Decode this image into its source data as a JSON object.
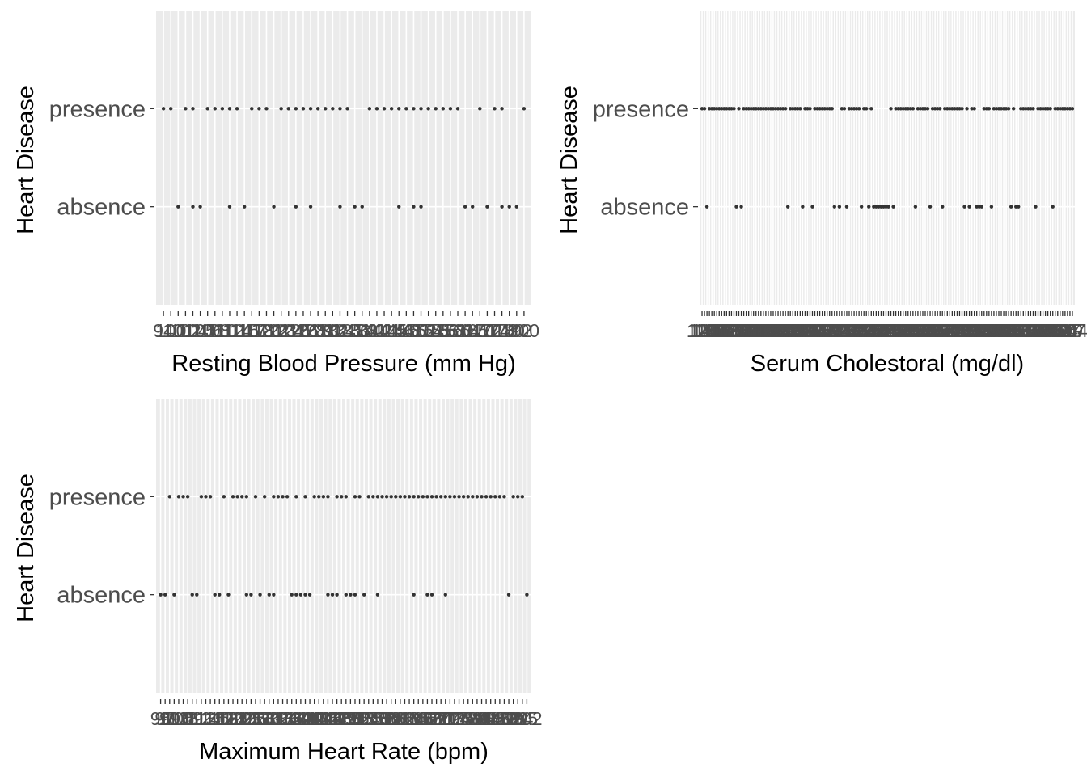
{
  "colors": {
    "panel_bg": "#ebebeb",
    "grid": "#ffffff",
    "point": "#333333",
    "tick": "#333333",
    "text": "#4d4d4d",
    "title": "#000000"
  },
  "chart_data": [
    {
      "type": "scatter",
      "x_scale": "discrete",
      "xlabel": "Resting Blood Pressure (mm Hg)",
      "ylabel": "Heart Disease",
      "categories": [
        "absence",
        "presence"
      ],
      "x_levels": [
        94,
        100,
        101,
        102,
        104,
        105,
        106,
        108,
        110,
        112,
        114,
        115,
        117,
        118,
        120,
        122,
        123,
        124,
        125,
        126,
        128,
        129,
        130,
        132,
        134,
        135,
        136,
        138,
        140,
        142,
        144,
        145,
        146,
        148,
        150,
        152,
        154,
        155,
        156,
        158,
        160,
        164,
        165,
        170,
        172,
        174,
        178,
        180,
        192,
        200
      ],
      "absence_x": [
        101,
        104,
        105,
        112,
        115,
        122,
        125,
        128,
        134,
        136,
        138,
        146,
        150,
        152,
        164,
        165,
        172,
        178,
        180,
        192
      ],
      "presence_x": [
        94,
        100,
        102,
        104,
        106,
        108,
        110,
        112,
        114,
        117,
        118,
        120,
        123,
        124,
        125,
        126,
        128,
        129,
        130,
        132,
        134,
        135,
        140,
        142,
        144,
        145,
        146,
        148,
        150,
        152,
        154,
        155,
        156,
        158,
        160,
        170,
        174,
        178,
        200
      ],
      "grid": true,
      "legend": "none"
    },
    {
      "type": "scatter",
      "x_scale": "discrete",
      "xlabel": "Serum Cholestoral (mg/dl)",
      "ylabel": "Heart Disease",
      "categories": [
        "absence",
        "presence"
      ],
      "x_levels": [
        126,
        131,
        141,
        149,
        157,
        160,
        164,
        166,
        167,
        168,
        169,
        172,
        174,
        175,
        176,
        177,
        178,
        180,
        182,
        183,
        184,
        185,
        186,
        187,
        188,
        192,
        193,
        195,
        196,
        197,
        198,
        199,
        200,
        201,
        203,
        204,
        205,
        206,
        207,
        208,
        209,
        210,
        211,
        212,
        213,
        214,
        215,
        216,
        217,
        218,
        219,
        220,
        221,
        222,
        223,
        224,
        225,
        226,
        227,
        228,
        229,
        230,
        231,
        232,
        233,
        234,
        235,
        236,
        237,
        239,
        240,
        241,
        242,
        243,
        244,
        245,
        246,
        247,
        248,
        249,
        250,
        252,
        253,
        254,
        255,
        256,
        257,
        258,
        259,
        260,
        261,
        262,
        263,
        264,
        265,
        266,
        267,
        268,
        269,
        270,
        271,
        273,
        274,
        275,
        276,
        277,
        278,
        281,
        282,
        283,
        284,
        286,
        288,
        289,
        290,
        293,
        294,
        295,
        298,
        299,
        300,
        302,
        303,
        304,
        305,
        306,
        307,
        308,
        309,
        311,
        313,
        315,
        318,
        319,
        321,
        322,
        325,
        326,
        327,
        330,
        335,
        340,
        341,
        342,
        353,
        354,
        360,
        394,
        407,
        409,
        417,
        564
      ],
      "absence_x": [
        141,
        176,
        178,
        204,
        210,
        214,
        223,
        225,
        228,
        234,
        237,
        240,
        241,
        242,
        243,
        244,
        245,
        246,
        248,
        258,
        264,
        269,
        281,
        283,
        288,
        289,
        290,
        298,
        307,
        309,
        311,
        325,
        342
      ],
      "presence_x": [
        126,
        131,
        149,
        157,
        160,
        164,
        166,
        167,
        168,
        169,
        172,
        174,
        175,
        177,
        180,
        182,
        183,
        184,
        185,
        186,
        187,
        188,
        192,
        193,
        195,
        196,
        197,
        198,
        199,
        200,
        201,
        203,
        205,
        206,
        207,
        208,
        209,
        211,
        212,
        213,
        215,
        216,
        217,
        218,
        219,
        220,
        221,
        222,
        226,
        227,
        229,
        230,
        231,
        232,
        233,
        235,
        236,
        239,
        247,
        249,
        250,
        252,
        253,
        254,
        255,
        256,
        257,
        259,
        260,
        261,
        262,
        263,
        265,
        266,
        267,
        268,
        270,
        271,
        273,
        274,
        275,
        276,
        277,
        278,
        282,
        284,
        286,
        293,
        294,
        295,
        299,
        300,
        302,
        303,
        304,
        305,
        306,
        308,
        313,
        315,
        318,
        319,
        321,
        322,
        326,
        327,
        330,
        335,
        340,
        341,
        353,
        354,
        360,
        394,
        407,
        409,
        417,
        564
      ],
      "grid": true,
      "legend": "none"
    },
    {
      "type": "scatter",
      "x_scale": "discrete",
      "xlabel": "Maximum Heart Rate (bpm)",
      "ylabel": "Heart Disease",
      "categories": [
        "absence",
        "presence"
      ],
      "x_levels": [
        96,
        97,
        99,
        103,
        105,
        108,
        109,
        111,
        112,
        113,
        114,
        115,
        116,
        117,
        118,
        120,
        121,
        122,
        123,
        125,
        126,
        127,
        128,
        130,
        131,
        132,
        133,
        134,
        136,
        138,
        139,
        140,
        141,
        142,
        143,
        144,
        145,
        146,
        147,
        148,
        149,
        150,
        151,
        152,
        153,
        154,
        155,
        156,
        157,
        158,
        159,
        160,
        161,
        162,
        163,
        164,
        165,
        166,
        167,
        168,
        169,
        170,
        171,
        172,
        173,
        174,
        175,
        178,
        179,
        180,
        181,
        182,
        184,
        185,
        186,
        187,
        188,
        190,
        192,
        194,
        195,
        202
      ],
      "absence_x": [
        96,
        97,
        103,
        111,
        112,
        116,
        117,
        120,
        125,
        126,
        128,
        131,
        132,
        138,
        139,
        140,
        141,
        142,
        146,
        147,
        148,
        150,
        151,
        152,
        154,
        157,
        165,
        168,
        169,
        172,
        190,
        202
      ],
      "presence_x": [
        99,
        105,
        108,
        109,
        113,
        114,
        115,
        118,
        121,
        122,
        123,
        125,
        127,
        130,
        132,
        133,
        134,
        136,
        139,
        141,
        143,
        144,
        145,
        146,
        148,
        149,
        150,
        152,
        153,
        155,
        156,
        157,
        158,
        159,
        160,
        161,
        162,
        163,
        164,
        165,
        166,
        167,
        168,
        169,
        170,
        171,
        172,
        173,
        174,
        175,
        178,
        179,
        180,
        181,
        182,
        184,
        185,
        186,
        187,
        188,
        192,
        194,
        195
      ],
      "grid": true,
      "legend": "none"
    }
  ]
}
